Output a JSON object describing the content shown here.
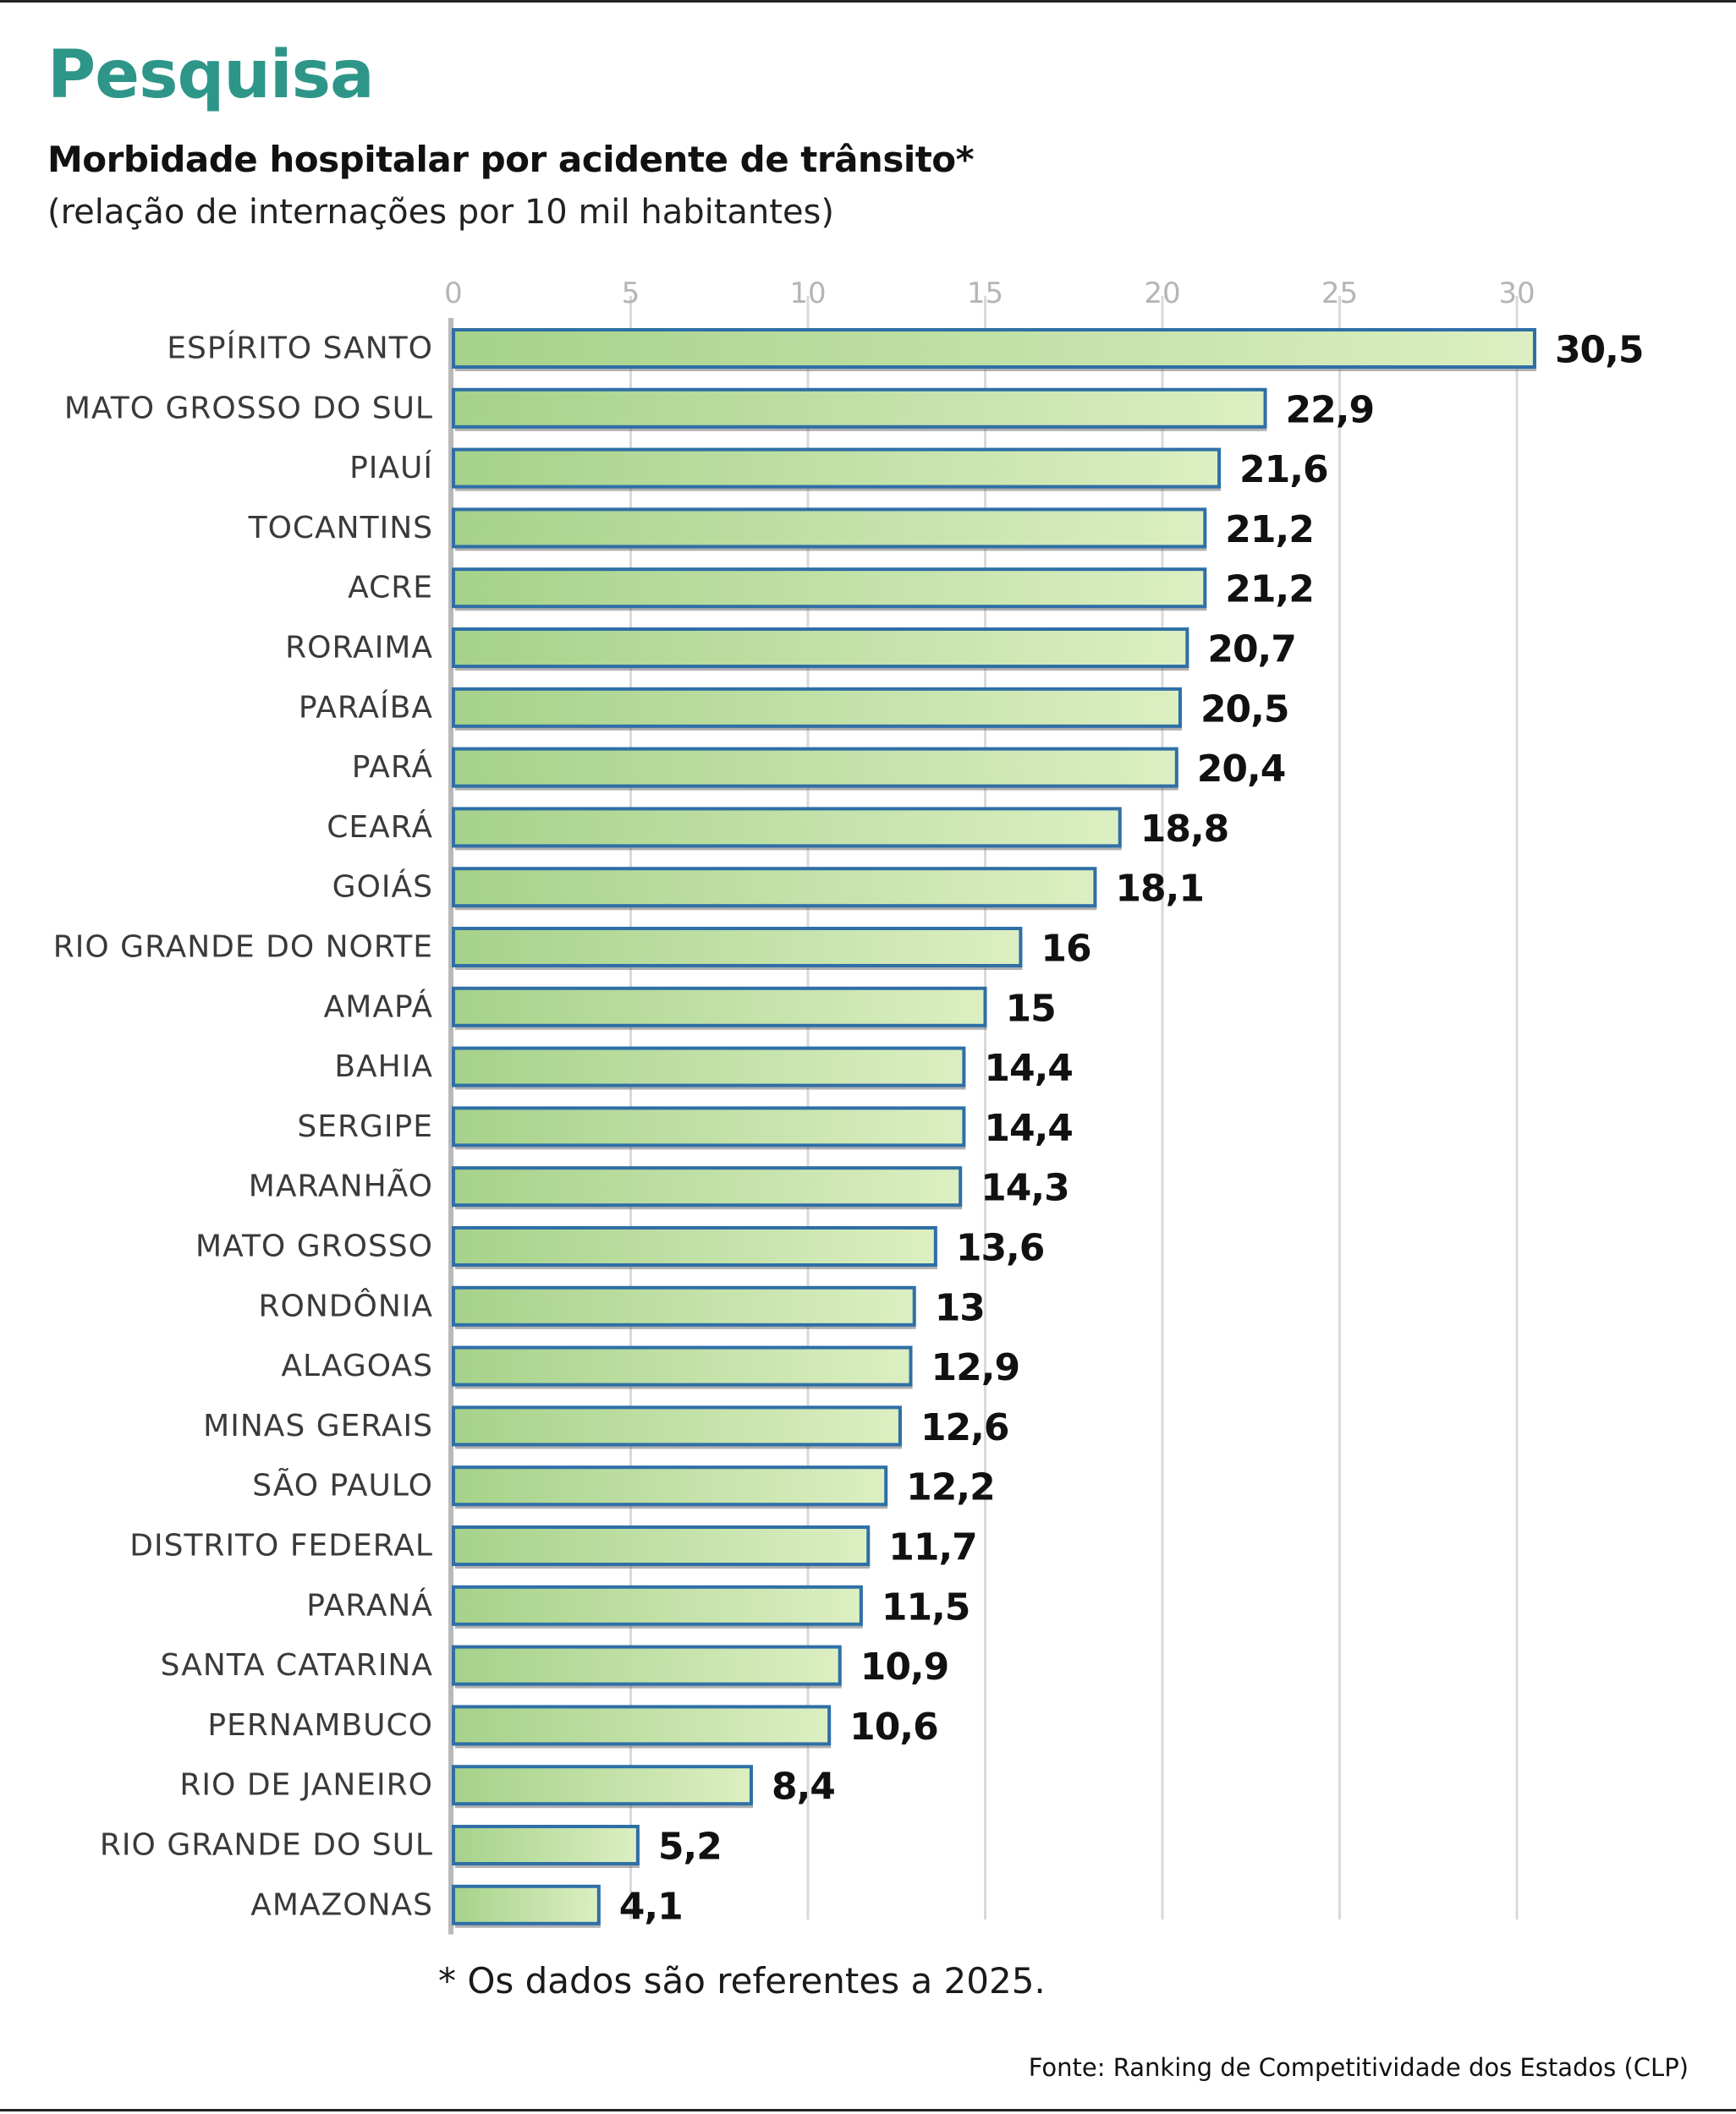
{
  "header": {
    "section": "Pesquisa",
    "title": "Morbidade hospitalar por acidente de trânsito*",
    "subtitle": "(relação de internações por 10 mil habitantes)"
  },
  "footer": {
    "note": "* Os dados são referentes a 2025.",
    "source": "Fonte: Ranking de Competitividade dos Estados (CLP)"
  },
  "colors": {
    "accent": "#2e9688",
    "bar_fill_light": "#dcefc2",
    "bar_fill_dark": "#a6d28a",
    "bar_stroke": "#2f6fa6",
    "grid": "#d9d9d9"
  },
  "chart_data": {
    "type": "bar",
    "orientation": "horizontal",
    "title": "Morbidade hospitalar por acidente de trânsito*",
    "subtitle": "(relação de internações por 10 mil habitantes)",
    "xlabel": "",
    "ylabel": "",
    "xlim": [
      0,
      35
    ],
    "ticks": [
      0,
      5,
      10,
      15,
      20,
      25,
      30
    ],
    "grid": true,
    "legend": "none",
    "categories": [
      "ESPÍRITO SANTO",
      "MATO GROSSO DO SUL",
      "PIAUÍ",
      "TOCANTINS",
      "ACRE",
      "RORAIMA",
      "PARAÍBA",
      "PARÁ",
      "CEARÁ",
      "GOIÁS",
      "RIO GRANDE DO NORTE",
      "AMAPÁ",
      "BAHIA",
      "SERGIPE",
      "MARANHÃO",
      "MATO GROSSO",
      "RONDÔNIA",
      "ALAGOAS",
      "MINAS GERAIS",
      "SÃO PAULO",
      "DISTRITO FEDERAL",
      "PARANÁ",
      "SANTA CATARINA",
      "PERNAMBUCO",
      "RIO DE JANEIRO",
      "RIO GRANDE DO SUL",
      "AMAZONAS"
    ],
    "values": [
      30.5,
      22.9,
      21.6,
      21.2,
      21.2,
      20.7,
      20.5,
      20.4,
      18.8,
      18.1,
      16,
      15,
      14.4,
      14.4,
      14.3,
      13.6,
      13,
      12.9,
      12.6,
      12.2,
      11.7,
      11.5,
      10.9,
      10.6,
      8.4,
      5.2,
      4.1
    ],
    "value_labels": [
      "30,5",
      "22,9",
      "21,6",
      "21,2",
      "21,2",
      "20,7",
      "20,5",
      "20,4",
      "18,8",
      "18,1",
      "16",
      "15",
      "14,4",
      "14,4",
      "14,3",
      "13,6",
      "13",
      "12,9",
      "12,6",
      "12,2",
      "11,7",
      "11,5",
      "10,9",
      "10,6",
      "8,4",
      "5,2",
      "4,1"
    ]
  }
}
